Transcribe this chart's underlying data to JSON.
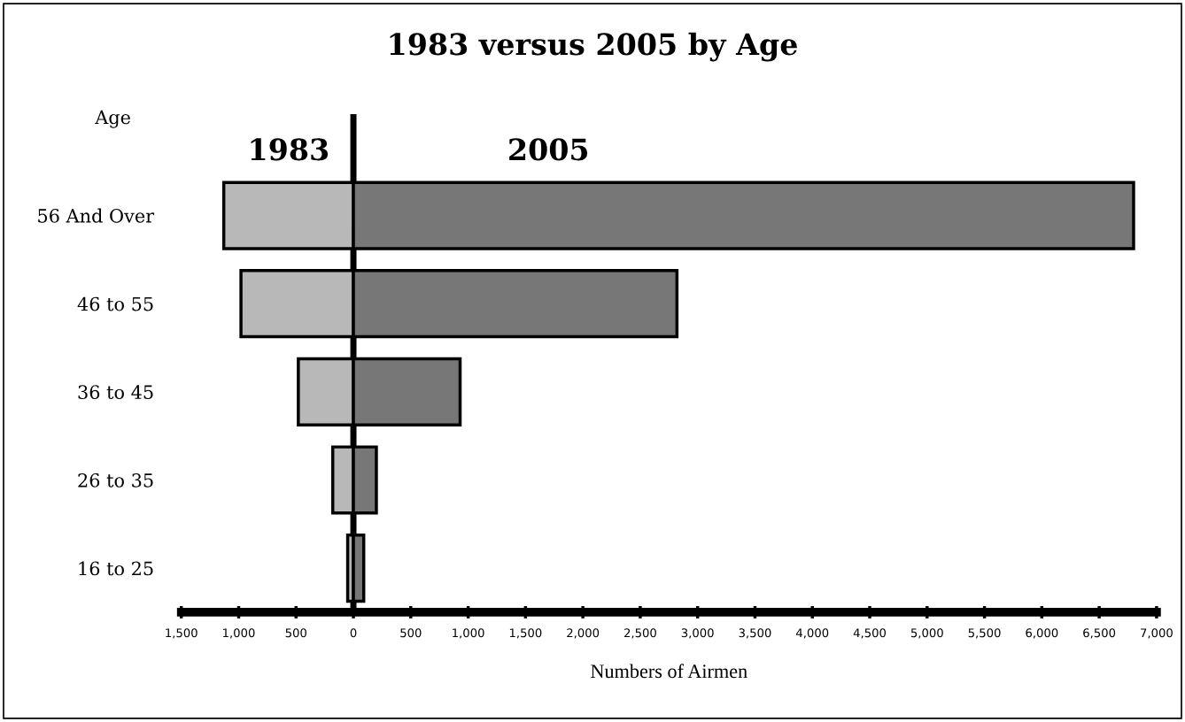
{
  "chart_data": {
    "type": "bar",
    "orientation": "horizontal",
    "title": "1983 versus 2005 by Age",
    "xlabel": "Numbers of Airmen",
    "ylabel": "Age",
    "categories": [
      "56 And Over",
      "46 to 55",
      "36 to 45",
      "26 to 35",
      "16 to 25"
    ],
    "series": [
      {
        "name": "1983",
        "color": "#b8b8b8",
        "values": [
          -1130,
          -980,
          -480,
          -180,
          -50
        ]
      },
      {
        "name": "2005",
        "color": "#777777",
        "values": [
          6800,
          2820,
          930,
          200,
          90
        ]
      }
    ],
    "xlim": [
      -1500,
      7000
    ],
    "xticks": [
      {
        "value": -1500,
        "label": "1,500"
      },
      {
        "value": -1000,
        "label": "1,000"
      },
      {
        "value": -500,
        "label": "500"
      },
      0,
      500,
      {
        "value": 1000,
        "label": "1,000"
      },
      {
        "value": 1500,
        "label": "1,500"
      },
      {
        "value": 2000,
        "label": "2,000"
      },
      {
        "value": 2500,
        "label": "2,500"
      },
      {
        "value": 3000,
        "label": "3,000"
      },
      {
        "value": 3500,
        "label": "3,500"
      },
      {
        "value": 4000,
        "label": "4,000"
      },
      {
        "value": 4500,
        "label": "4,500"
      },
      {
        "value": 5000,
        "label": "5,000"
      },
      {
        "value": 5500,
        "label": "5,500"
      },
      {
        "value": 6000,
        "label": "6,000"
      },
      {
        "value": 6500,
        "label": "6,500"
      },
      {
        "value": 7000,
        "label": "7,000"
      }
    ],
    "ref_lines": [
      {
        "axis": "x",
        "value": 0,
        "color": "#000000"
      }
    ],
    "legend": "top",
    "stacked": true,
    "grid": false
  }
}
